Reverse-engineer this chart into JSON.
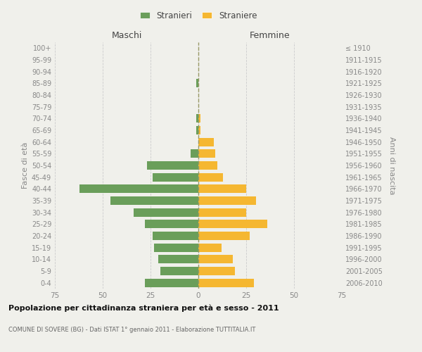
{
  "age_groups": [
    "100+",
    "95-99",
    "90-94",
    "85-89",
    "80-84",
    "75-79",
    "70-74",
    "65-69",
    "60-64",
    "55-59",
    "50-54",
    "45-49",
    "40-44",
    "35-39",
    "30-34",
    "25-29",
    "20-24",
    "15-19",
    "10-14",
    "5-9",
    "0-4"
  ],
  "birth_years": [
    "≤ 1910",
    "1911-1915",
    "1916-1920",
    "1921-1925",
    "1926-1930",
    "1931-1935",
    "1936-1940",
    "1941-1945",
    "1946-1950",
    "1951-1955",
    "1956-1960",
    "1961-1965",
    "1966-1970",
    "1971-1975",
    "1976-1980",
    "1981-1985",
    "1986-1990",
    "1991-1995",
    "1996-2000",
    "2001-2005",
    "2006-2010"
  ],
  "maschi": [
    0,
    0,
    0,
    1,
    0,
    0,
    1,
    1,
    0,
    4,
    27,
    24,
    62,
    46,
    34,
    28,
    24,
    23,
    21,
    20,
    28
  ],
  "femmine": [
    0,
    0,
    0,
    0,
    0,
    0,
    1,
    1,
    8,
    9,
    10,
    13,
    25,
    30,
    25,
    36,
    27,
    12,
    18,
    19,
    29
  ],
  "male_color": "#6a9e5a",
  "female_color": "#f5b731",
  "background_color": "#f0f0eb",
  "grid_color": "#cccccc",
  "axis_text_color": "#888888",
  "xlim": 75,
  "title": "Popolazione per cittadinanza straniera per età e sesso - 2011",
  "subtitle": "COMUNE DI SOVERE (BG) - Dati ISTAT 1° gennaio 2011 - Elaborazione TUTTITALIA.IT",
  "ylabel_left": "Fasce di età",
  "ylabel_right": "Anni di nascita",
  "legend_maschi": "Stranieri",
  "legend_femmine": "Straniere",
  "maschi_label": "Maschi",
  "femmine_label": "Femmine"
}
